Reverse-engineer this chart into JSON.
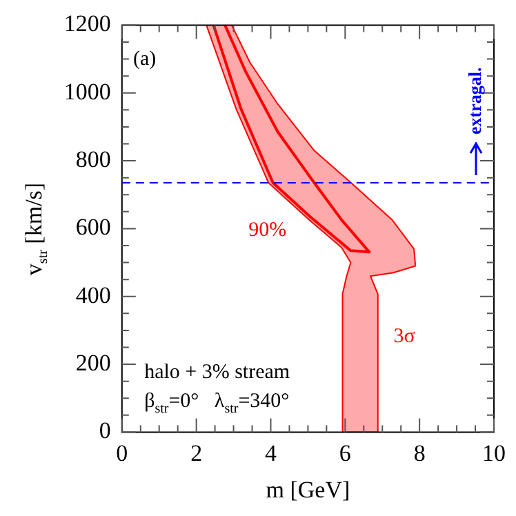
{
  "chart_data": {
    "type": "line",
    "xlabel": "m [GeV]",
    "ylabel": "v$_{str}$ [km/s]",
    "xlim": [
      0,
      10
    ],
    "ylim": [
      0,
      1200
    ],
    "xticks": [
      0,
      {
        "value": 0.5,
        "label": null
      },
      2,
      {
        "value": 1,
        "label": null
      },
      {
        "value": 1.5,
        "label": null
      },
      {
        "value": 2.5,
        "label": null
      },
      {
        "value": 3,
        "label": null
      },
      {
        "value": 3.5,
        "label": null
      },
      4,
      {
        "value": 4.5,
        "label": null
      },
      {
        "value": 5,
        "label": null
      },
      {
        "value": 5.5,
        "label": null
      },
      6,
      {
        "value": 6.5,
        "label": null
      },
      {
        "value": 7,
        "label": null
      },
      {
        "value": 7.5,
        "label": null
      },
      8,
      {
        "value": 8.5,
        "label": null
      },
      {
        "value": 9,
        "label": null
      },
      {
        "value": 9.5,
        "label": null
      },
      10
    ],
    "yticks": [
      0,
      {
        "value": 50,
        "label": null
      },
      {
        "value": 100,
        "label": null
      },
      {
        "value": 150,
        "label": null
      },
      200,
      {
        "value": 250,
        "label": null
      },
      {
        "value": 300,
        "label": null
      },
      {
        "value": 350,
        "label": null
      },
      400,
      {
        "value": 450,
        "label": null
      },
      {
        "value": 500,
        "label": null
      },
      {
        "value": 550,
        "label": null
      },
      600,
      {
        "value": 650,
        "label": null
      },
      {
        "value": 700,
        "label": null
      },
      {
        "value": 750,
        "label": null
      },
      800,
      {
        "value": 850,
        "label": null
      },
      {
        "value": 900,
        "label": null
      },
      {
        "value": 950,
        "label": null
      },
      1000,
      {
        "value": 1050,
        "label": null
      },
      {
        "value": 1100,
        "label": null
      },
      {
        "value": 1150,
        "label": null
      },
      1200
    ],
    "series": [
      {
        "type": "area",
        "color": "#ff0000",
        "x": [
          2.27,
          3.07,
          3.94,
          5.04,
          5.9,
          6.15,
          6.04,
          5.93,
          5.93,
          6.87,
          6.88,
          6.68,
          7.3,
          7.89,
          7.85,
          7.27,
          6.16,
          5.17,
          4.19,
          3.44,
          2.95
        ],
        "values": [
          1200,
          953,
          735,
          625,
          545,
          500,
          460,
          407,
          0,
          0,
          407,
          460,
          470,
          490,
          540,
          625,
          735,
          830,
          967,
          1090,
          1200
        ]
      },
      {
        "color": "#ff0000",
        "x": [
          2.46,
          3.2,
          4.06,
          5.04,
          6.15,
          6.65,
          5.91,
          5.17,
          4.19,
          3.32,
          2.77
        ],
        "values": [
          1200,
          953,
          735,
          637,
          535,
          531,
          625,
          735,
          885,
          1064,
          1200
        ]
      }
    ],
    "ref_lines": [
      {
        "axis": "y",
        "value": 735,
        "label": "extragal.",
        "color": "#0000ff",
        "line_style": "dashed"
      }
    ],
    "annotations": [
      "(a)",
      "halo + 3% stream",
      "β$_{str}$=0°   λ$_{str}$=340°",
      "90%",
      "3σ"
    ]
  }
}
